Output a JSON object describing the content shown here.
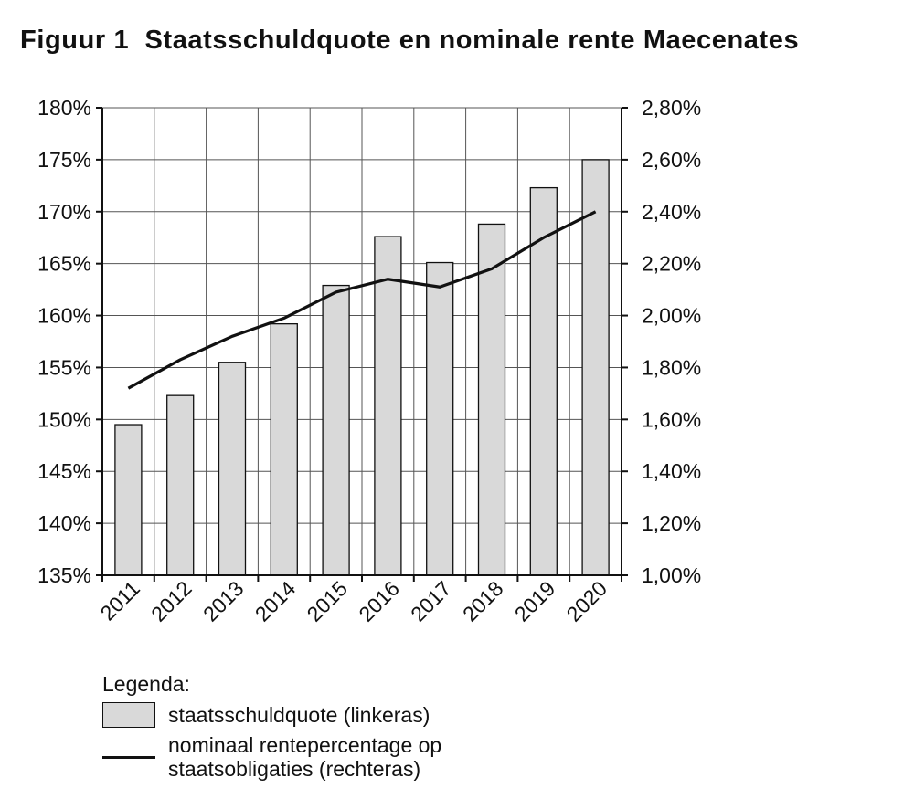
{
  "title": "Figuur 1  Staatsschuldquote en nominale rente Maecenates",
  "chart_data": {
    "type": "bar",
    "title": "Figuur 1  Staatsschuldquote en nominale rente Maecenates",
    "categories": [
      "2011",
      "2012",
      "2013",
      "2014",
      "2015",
      "2016",
      "2017",
      "2018",
      "2019",
      "2020"
    ],
    "left_axis": {
      "label": "",
      "range": [
        135,
        180
      ],
      "ticks": [
        "135%",
        "140%",
        "145%",
        "150%",
        "155%",
        "160%",
        "165%",
        "170%",
        "175%",
        "180%"
      ]
    },
    "right_axis": {
      "label": "",
      "range": [
        1.0,
        2.8
      ],
      "ticks": [
        "1,00%",
        "1,20%",
        "1,40%",
        "1,60%",
        "1,80%",
        "2,00%",
        "2,20%",
        "2,40%",
        "2,60%",
        "2,80%"
      ]
    },
    "series": [
      {
        "name": "staatsschuldquote (linkeras)",
        "type": "bar",
        "axis": "left",
        "values": [
          149.5,
          152.3,
          155.5,
          159.2,
          162.9,
          167.6,
          165.1,
          168.8,
          172.3,
          175.0
        ],
        "color": "#d9d9d9"
      },
      {
        "name": "nominaal rentepercentage op staatsobligaties (rechteras)",
        "type": "line",
        "axis": "right",
        "values": [
          1.72,
          1.83,
          1.92,
          1.99,
          2.09,
          2.14,
          2.11,
          2.18,
          2.3,
          2.4
        ],
        "color": "#111111"
      }
    ],
    "grid": true
  },
  "legend": {
    "title": "Legenda:",
    "bar_label": "staatsschuldquote (linkeras)",
    "line_label_1": "nominaal rentepercentage op",
    "line_label_2": "staatsobligaties (rechteras)"
  }
}
